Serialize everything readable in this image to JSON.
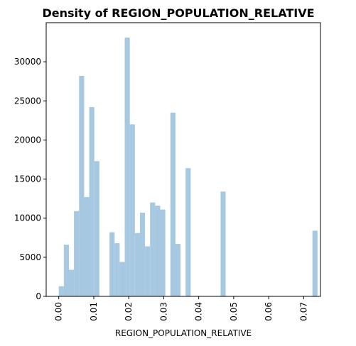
{
  "chart_data": {
    "type": "bar",
    "title": "Density of REGION_POPULATION_RELATIVE",
    "xlabel": "REGION_POPULATION_RELATIVE",
    "ylabel": "",
    "xlim": [
      -0.0036,
      0.0748
    ],
    "ylim": [
      0,
      35000
    ],
    "xticks": [
      0.0,
      0.01,
      0.02,
      0.03,
      0.04,
      0.05,
      0.06,
      0.07
    ],
    "xtick_labels": [
      "0.00",
      "0.01",
      "0.02",
      "0.03",
      "0.04",
      "0.05",
      "0.06",
      "0.07"
    ],
    "yticks": [
      0,
      5000,
      10000,
      15000,
      20000,
      25000,
      30000
    ],
    "ytick_labels": [
      "0",
      "5000",
      "10000",
      "15000",
      "20000",
      "25000",
      "30000"
    ],
    "bar_color": "#a6c8e0",
    "bin_width": 0.00145,
    "x": [
      0.0,
      0.00145,
      0.0029,
      0.00435,
      0.0058,
      0.00725,
      0.0087,
      0.01015,
      0.0116,
      0.0145,
      0.01595,
      0.0174,
      0.01885,
      0.0203,
      0.02175,
      0.0232,
      0.02465,
      0.0261,
      0.02755,
      0.029,
      0.0319,
      0.03335,
      0.03625,
      0.04625,
      0.0725
    ],
    "values": [
      1300,
      6600,
      3400,
      10900,
      28200,
      12700,
      24200,
      17300,
      0,
      8200,
      6800,
      4400,
      33100,
      22000,
      8100,
      10700,
      6400,
      12000,
      11600,
      11100,
      23500,
      6700,
      16400,
      13400,
      8400
    ],
    "grid": false
  }
}
